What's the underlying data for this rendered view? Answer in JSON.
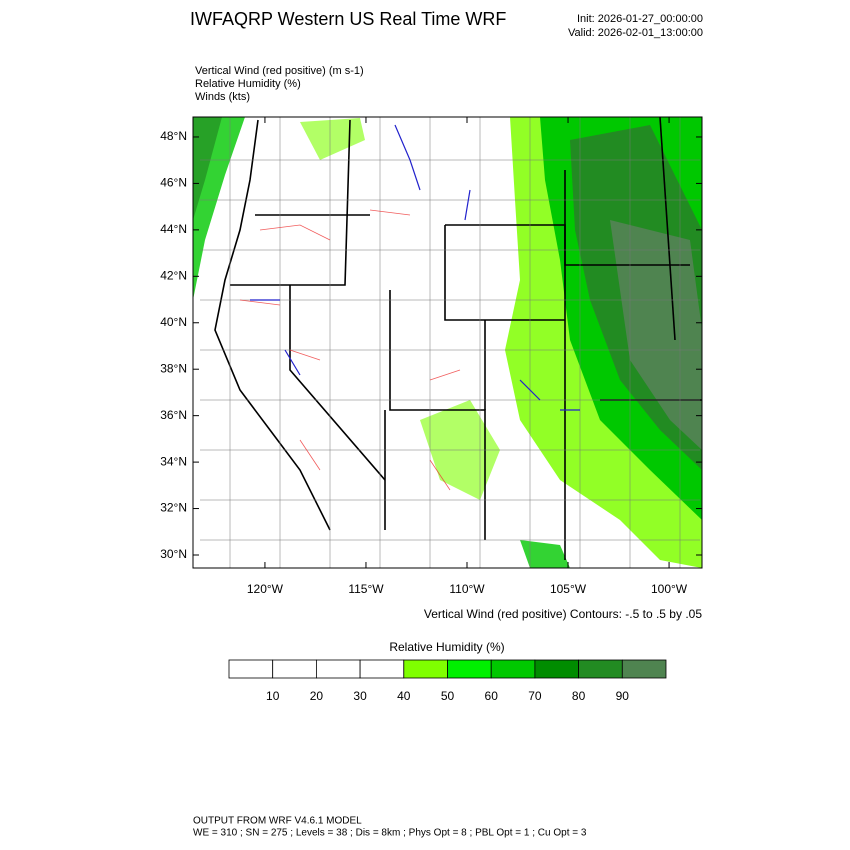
{
  "header": {
    "title": "IWFAQRP Western US Real Time WRF",
    "init": "Init: 2026-01-27_00:00:00",
    "valid": "Valid: 2026-02-01_13:00:00"
  },
  "fields": [
    "Vertical Wind (red positive)   (m s-1)",
    "Relative Humidity   (%)",
    "Winds   (kts)"
  ],
  "map": {
    "latlim": [
      29.44,
      48.86
    ],
    "lonlim": [
      -123.56,
      -98.37
    ],
    "lat_ticks": [
      {
        "value": 30,
        "label": "30°N"
      },
      {
        "value": 32,
        "label": "32°N"
      },
      {
        "value": 34,
        "label": "34°N"
      },
      {
        "value": 36,
        "label": "36°N"
      },
      {
        "value": 38,
        "label": "38°N"
      },
      {
        "value": 40,
        "label": "40°N"
      },
      {
        "value": 42,
        "label": "42°N"
      },
      {
        "value": 44,
        "label": "44°N"
      },
      {
        "value": 46,
        "label": "46°N"
      },
      {
        "value": 48,
        "label": "48°N"
      }
    ],
    "lon_ticks": [
      {
        "value": -120,
        "label": "120°W"
      },
      {
        "value": -115,
        "label": "115°W"
      },
      {
        "value": -110,
        "label": "110°W"
      },
      {
        "value": -105,
        "label": "105°W"
      },
      {
        "value": -100,
        "label": "100°W"
      }
    ],
    "contour_note": "Vertical Wind (red positive) Contours: -.5 to .5 by .05"
  },
  "colorbar": {
    "title": "Relative Humidity  (%)",
    "levels": [
      10,
      20,
      30,
      40,
      50,
      60,
      70,
      80,
      90
    ],
    "colors": [
      "#ffffff",
      "#ffffff",
      "#ffffff",
      "#ffffff",
      "#7fff00",
      "#00f000",
      "#00c800",
      "#008c00",
      "#228b22",
      "#4f8450"
    ]
  },
  "footer": {
    "line1": "OUTPUT FROM WRF V4.6.1 MODEL",
    "line2": "WE = 310 ; SN = 275 ; Levels = 38 ; Dis = 8km ; Phys Opt = 8 ; PBL Opt = 1 ; Cu Opt = 3"
  }
}
